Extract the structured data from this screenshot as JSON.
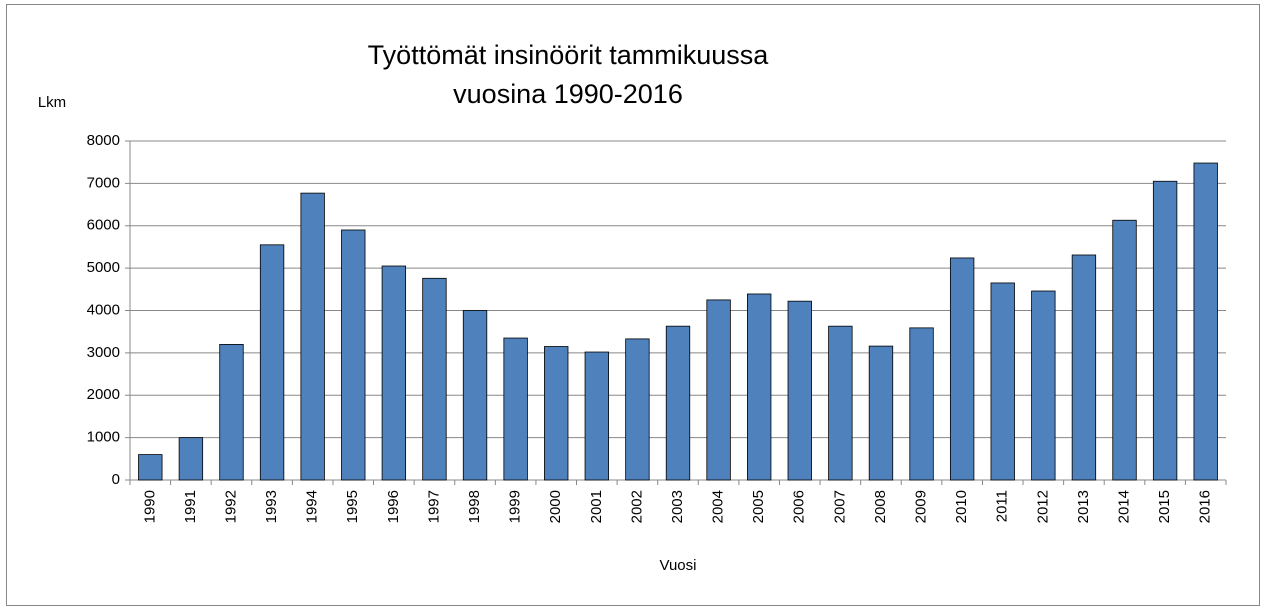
{
  "chart_data": {
    "type": "bar",
    "title": [
      "Työttömät insinöörit tammikuussa",
      "vuosina 1990-2016"
    ],
    "ylabel": "Lkm",
    "xlabel": "Vuosi",
    "categories": [
      "1990",
      "1991",
      "1992",
      "1993",
      "1994",
      "1995",
      "1996",
      "1997",
      "1998",
      "1999",
      "2000",
      "2001",
      "2002",
      "2003",
      "2004",
      "2005",
      "2006",
      "2007",
      "2008",
      "2009",
      "2010",
      "2011",
      "2012",
      "2013",
      "2014",
      "2015",
      "2016"
    ],
    "values": [
      600,
      1000,
      3200,
      5550,
      6770,
      5900,
      5050,
      4760,
      4000,
      3350,
      3150,
      3020,
      3330,
      3630,
      4250,
      4390,
      4220,
      3630,
      3160,
      3590,
      5240,
      4650,
      4460,
      5310,
      6130,
      7050,
      7480
    ],
    "color": "#4f81bd",
    "ylim": [
      0,
      8000
    ],
    "yticks": [
      0,
      1000,
      2000,
      3000,
      4000,
      5000,
      6000,
      7000,
      8000
    ],
    "grid": true
  }
}
